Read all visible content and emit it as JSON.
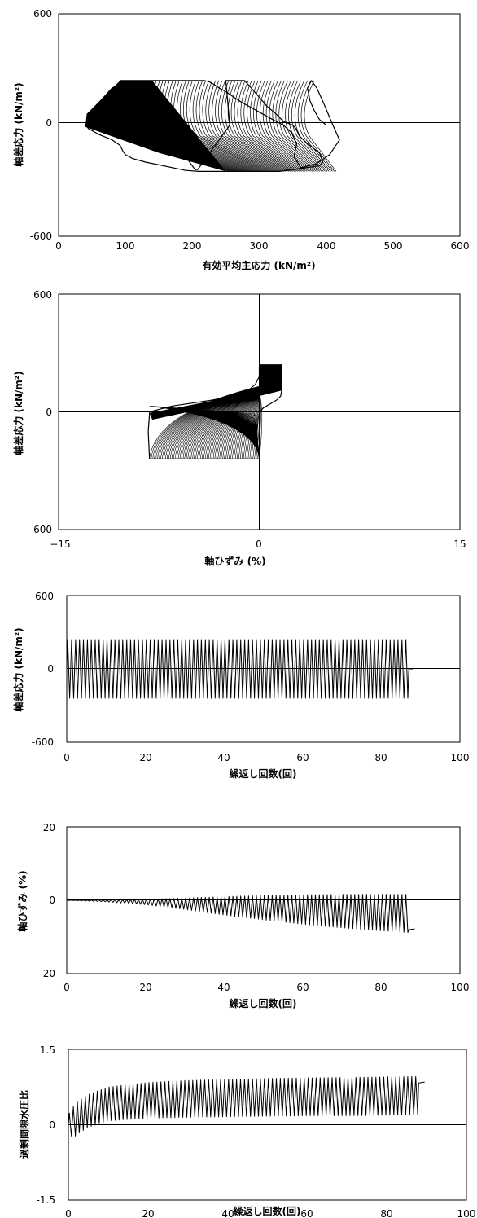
{
  "chart_data": [
    {
      "type": "line",
      "title": "",
      "xlabel": "有効平均主応力 (kN/m²)",
      "ylabel": "軸差応力 (kN/m²)",
      "xlim": [
        0,
        600
      ],
      "ylim": [
        -600,
        600
      ],
      "xticks": [
        "0",
        "100",
        "200",
        "300",
        "400",
        "500",
        "600"
      ],
      "yticks": [
        "600",
        "0",
        "-600"
      ],
      "series": [
        {
          "description_free": true,
          "x": [
            400,
            390,
            382,
            376,
            372,
            378,
            386,
            396,
            410,
            420,
            405,
            385,
            362,
            352,
            356,
            348,
            336,
            320,
            305,
            290,
            275,
            262,
            250,
            240,
            232,
            224,
            218,
            200,
            180,
            160,
            140,
            120,
            100,
            80,
            60,
            45,
            40,
            45,
            60,
            80,
            92,
            96,
            100,
            110,
            130,
            150,
            170,
            190,
            210,
            230,
            250,
            270,
            290,
            310,
            330,
            350,
            370,
            390,
            395,
            390,
            372,
            360,
            355,
            350,
            336,
            325,
            312,
            300,
            288,
            278,
            268,
            258,
            250,
            256,
            252,
            248,
            244,
            240,
            236,
            232,
            228,
            224,
            220,
            216,
            212,
            208,
            204,
            200,
            196,
            192,
            188,
            184,
            180,
            176,
            172,
            168,
            164,
            160,
            156,
            152,
            148,
            144,
            140,
            136,
            132,
            128,
            124,
            120,
            116,
            112,
            108,
            104,
            100,
            96,
            92
          ],
          "y": [
            0,
            30,
            80,
            130,
            200,
            240,
            200,
            120,
            0,
            -80,
            -160,
            -210,
            -230,
            -170,
            -100,
            -40,
            0,
            30,
            60,
            90,
            120,
            150,
            180,
            200,
            220,
            235,
            240,
            240,
            240,
            240,
            240,
            240,
            240,
            200,
            120,
            40,
            0,
            -20,
            -50,
            -80,
            -110,
            -140,
            -160,
            -180,
            -200,
            -215,
            -230,
            -245,
            -250,
            -250,
            -250,
            -250,
            -250,
            -250,
            -250,
            -240,
            -230,
            -220,
            -200,
            -150,
            -100,
            -60,
            -20,
            0,
            20,
            60,
            100,
            150,
            200,
            240,
            240,
            240,
            240,
            0,
            -20,
            -40,
            -60,
            -80,
            -100,
            -120,
            -140,
            -160,
            -180,
            -200,
            -220,
            -240,
            -240,
            -220,
            -200,
            -180,
            -160,
            -140,
            -120,
            -100,
            -80,
            -60,
            -40,
            -20,
            0,
            20,
            40,
            60,
            80,
            100,
            120,
            140,
            160,
            180,
            200,
            220,
            240,
            240,
            240,
            240,
            240
          ]
        }
      ],
      "grid": false
    },
    {
      "type": "line",
      "title": "",
      "xlabel": "軸ひずみ (%)",
      "ylabel": "軸差応力 (kN/m²)",
      "xlim": [
        -15,
        15
      ],
      "ylim": [
        -600,
        600
      ],
      "xticks": [
        "−15",
        "0",
        "15"
      ],
      "yticks": [
        "600",
        "0",
        "-600"
      ],
      "series": [
        {
          "x": [
            0,
            0.05,
            0.15,
            0.5,
            1.0,
            1.7,
            1.7,
            1.6,
            1.3,
            0.8,
            0.3,
            0.05,
            0,
            0,
            -0.1,
            -0.5,
            -1.2,
            -2.5,
            -4.0,
            -5.5,
            -7.0,
            -8.2,
            -8.3,
            -8.2,
            -8.2,
            -6.5,
            -5.0,
            -3.5,
            -2.0,
            -1.0,
            -0.3,
            0,
            0,
            0.1,
            0.3,
            0.6,
            1.0,
            1.5,
            1.7
          ],
          "y": [
            0,
            100,
            230,
            240,
            240,
            240,
            120,
            80,
            60,
            40,
            20,
            0,
            -40,
            -240,
            -240,
            -240,
            -240,
            -240,
            -240,
            -240,
            -240,
            -240,
            -100,
            -10,
            0,
            30,
            45,
            60,
            80,
            100,
            140,
            180,
            230,
            240,
            240,
            240,
            240,
            240,
            240
          ]
        }
      ],
      "grid": false
    },
    {
      "type": "line",
      "title": "",
      "xlabel": "繰返し回数(回)",
      "ylabel": "軸差応力 (kN/m²)",
      "xlim": [
        0,
        100
      ],
      "ylim": [
        -600,
        600
      ],
      "xticks": [
        "0",
        "20",
        "40",
        "60",
        "80",
        "100"
      ],
      "yticks": [
        "600",
        "0",
        "-600"
      ],
      "series": [
        {
          "cycles_to": 87,
          "amplitude_upper": 240,
          "amplitude_lower": -240,
          "final_value": 0
        }
      ],
      "grid": false
    },
    {
      "type": "line",
      "title": "",
      "xlabel": "繰返し回数(回)",
      "ylabel": "軸ひずみ (%)",
      "xlim": [
        0,
        100
      ],
      "ylim": [
        -20,
        20
      ],
      "xticks": [
        "0",
        "20",
        "40",
        "60",
        "80",
        "100"
      ],
      "yticks": [
        "20",
        "0",
        "-20"
      ],
      "series": [
        {
          "cycles_to": 87,
          "upper_envelope": [
            [
              0,
              0
            ],
            [
              10,
              0.1
            ],
            [
              20,
              0.3
            ],
            [
              30,
              0.6
            ],
            [
              40,
              1.0
            ],
            [
              50,
              1.3
            ],
            [
              60,
              1.5
            ],
            [
              70,
              1.6
            ],
            [
              80,
              1.6
            ],
            [
              87,
              1.6
            ]
          ],
          "lower_envelope": [
            [
              0,
              0
            ],
            [
              10,
              -0.4
            ],
            [
              20,
              -1.2
            ],
            [
              30,
              -2.5
            ],
            [
              40,
              -4.0
            ],
            [
              50,
              -5.3
            ],
            [
              60,
              -6.5
            ],
            [
              70,
              -7.5
            ],
            [
              80,
              -8.3
            ],
            [
              87,
              -8.8
            ]
          ],
          "final_value": -8.0
        }
      ],
      "grid": false
    },
    {
      "type": "line",
      "title": "",
      "xlabel": "繰返し回数(回)",
      "ylabel": "過剰間隙水圧比",
      "xlim": [
        0,
        100
      ],
      "ylim": [
        -1.5,
        1.5
      ],
      "xticks": [
        "0",
        "20",
        "40",
        "60",
        "80",
        "100"
      ],
      "yticks": [
        "1.5",
        "0",
        "-1.5"
      ],
      "series": [
        {
          "cycles_to": 88,
          "upper_envelope": [
            [
              0,
              0.2
            ],
            [
              2,
              0.45
            ],
            [
              5,
              0.6
            ],
            [
              10,
              0.75
            ],
            [
              20,
              0.84
            ],
            [
              30,
              0.88
            ],
            [
              40,
              0.9
            ],
            [
              50,
              0.92
            ],
            [
              60,
              0.93
            ],
            [
              70,
              0.94
            ],
            [
              80,
              0.95
            ],
            [
              88,
              0.96
            ]
          ],
          "lower_envelope": [
            [
              0,
              0
            ],
            [
              1,
              -0.3
            ],
            [
              2,
              -0.2
            ],
            [
              5,
              -0.05
            ],
            [
              10,
              0.08
            ],
            [
              20,
              0.13
            ],
            [
              30,
              0.15
            ],
            [
              40,
              0.16
            ],
            [
              50,
              0.17
            ],
            [
              60,
              0.18
            ],
            [
              70,
              0.18
            ],
            [
              80,
              0.19
            ],
            [
              88,
              0.2
            ]
          ],
          "final_value": 0.83
        }
      ],
      "grid": false
    }
  ]
}
